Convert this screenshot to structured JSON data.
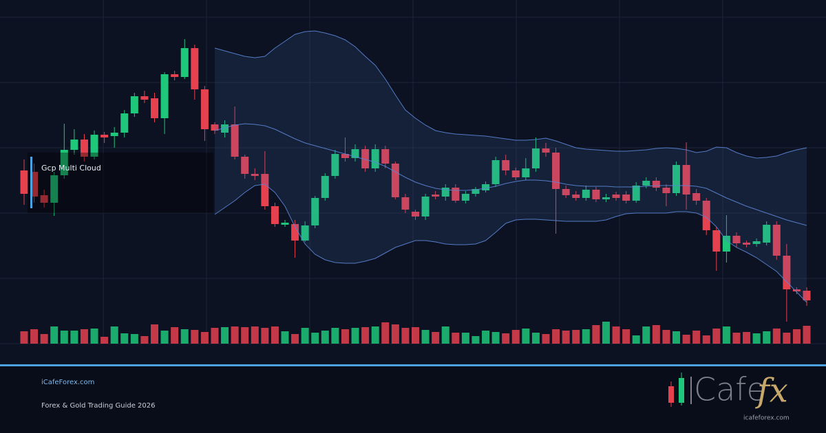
{
  "chart_data": {
    "type": "candlestick",
    "annotation": "Gcp Multi Cloud",
    "open": [
      252,
      250,
      216,
      205,
      245,
      282,
      297,
      272,
      304,
      302,
      307,
      335,
      360,
      357,
      328,
      392,
      388,
      430,
      370,
      319,
      307,
      319,
      272,
      247,
      247,
      200,
      173,
      174,
      150,
      172,
      212,
      244,
      276,
      270,
      283,
      255,
      283,
      262,
      213,
      192,
      185,
      217,
      214,
      227,
      208,
      218,
      223,
      232,
      267,
      252,
      242,
      255,
      284,
      278,
      225,
      217,
      212,
      224,
      210,
      217,
      217,
      208,
      230,
      237,
      227,
      219,
      260,
      219,
      208,
      165,
      134,
      157,
      147,
      145,
      147,
      173,
      128,
      79,
      77
    ],
    "close": [
      218,
      214,
      205,
      245,
      282,
      297,
      272,
      304,
      300,
      307,
      335,
      360,
      355,
      328,
      392,
      388,
      430,
      370,
      312,
      310,
      319,
      272,
      247,
      244,
      200,
      174,
      176,
      150,
      172,
      212,
      244,
      276,
      270,
      283,
      255,
      283,
      262,
      213,
      195,
      185,
      214,
      214,
      227,
      208,
      218,
      225,
      232,
      267,
      252,
      242,
      255,
      284,
      278,
      225,
      216,
      212,
      224,
      210,
      213,
      212,
      208,
      230,
      237,
      227,
      219,
      260,
      217,
      208,
      165,
      134,
      157,
      146,
      144,
      149,
      173,
      128,
      79,
      76,
      63
    ],
    "high": [
      268,
      262,
      224,
      250,
      320,
      312,
      305,
      310,
      308,
      315,
      340,
      365,
      368,
      365,
      395,
      397,
      443,
      435,
      375,
      322,
      325,
      345,
      275,
      255,
      280,
      205,
      180,
      180,
      178,
      215,
      248,
      282,
      300,
      290,
      288,
      290,
      288,
      265,
      218,
      195,
      218,
      222,
      232,
      232,
      222,
      228,
      236,
      272,
      275,
      256,
      270,
      300,
      292,
      285,
      230,
      222,
      230,
      228,
      218,
      221,
      222,
      235,
      242,
      242,
      232,
      265,
      293,
      225,
      212,
      170,
      187,
      162,
      150,
      153,
      178,
      178,
      145,
      82,
      82
    ],
    "low": [
      202,
      205,
      198,
      186,
      240,
      275,
      265,
      268,
      292,
      285,
      300,
      330,
      350,
      322,
      305,
      383,
      385,
      355,
      295,
      305,
      300,
      268,
      240,
      238,
      195,
      170,
      170,
      125,
      148,
      168,
      208,
      240,
      265,
      265,
      250,
      250,
      255,
      210,
      190,
      180,
      180,
      210,
      208,
      205,
      204,
      214,
      220,
      228,
      245,
      238,
      238,
      250,
      272,
      160,
      212,
      208,
      208,
      206,
      206,
      208,
      204,
      205,
      226,
      222,
      200,
      215,
      195,
      202,
      158,
      106,
      118,
      140,
      140,
      141,
      143,
      122,
      32,
      72,
      55
    ],
    "volume": [
      18,
      21,
      14,
      25,
      19,
      19,
      21,
      22,
      10,
      25,
      15,
      14,
      11,
      28,
      19,
      24,
      21,
      20,
      17,
      23,
      24,
      25,
      24,
      25,
      23,
      25,
      18,
      14,
      23,
      16,
      19,
      23,
      21,
      23,
      24,
      25,
      31,
      28,
      23,
      24,
      20,
      17,
      25,
      16,
      16,
      11,
      19,
      17,
      15,
      20,
      22,
      16,
      14,
      21,
      19,
      20,
      21,
      27,
      32,
      25,
      21,
      12,
      25,
      27,
      20,
      18,
      13,
      19,
      12,
      22,
      25,
      16,
      17,
      15,
      18,
      22,
      16,
      21,
      26
    ],
    "colors": {
      "up": "#1fc77a",
      "down": "#e5414f"
    },
    "bands": {
      "color": "#5b86d6",
      "upper": [
        null,
        null,
        null,
        null,
        null,
        null,
        null,
        null,
        null,
        null,
        null,
        null,
        null,
        null,
        null,
        null,
        null,
        null,
        null,
        430,
        426,
        422,
        418,
        416,
        418,
        430,
        440,
        450,
        454,
        455,
        452,
        448,
        442,
        432,
        418,
        405,
        385,
        362,
        340,
        328,
        318,
        310,
        307,
        305,
        304,
        303,
        302,
        300,
        298,
        296,
        296,
        297,
        299,
        295,
        290,
        285,
        283,
        282,
        281,
        280,
        280,
        281,
        282,
        284,
        285,
        284,
        282,
        278,
        280,
        286,
        285,
        278,
        273,
        270,
        271,
        273,
        278,
        282,
        285
      ],
      "middle": [
        null,
        null,
        null,
        null,
        null,
        null,
        null,
        null,
        null,
        null,
        null,
        null,
        null,
        null,
        null,
        null,
        null,
        null,
        null,
        310,
        314,
        318,
        320,
        319,
        317,
        312,
        305,
        298,
        292,
        288,
        284,
        280,
        276,
        272,
        268,
        264,
        258,
        250,
        242,
        235,
        230,
        226,
        224,
        223,
        223,
        224,
        226,
        229,
        233,
        236,
        238,
        238,
        237,
        235,
        232,
        230,
        229,
        229,
        229,
        228,
        228,
        228,
        229,
        230,
        230,
        230,
        230,
        229,
        226,
        219,
        212,
        206,
        200,
        195,
        190,
        185,
        180,
        176,
        172
      ],
      "lower": [
        null,
        null,
        null,
        null,
        null,
        null,
        null,
        null,
        null,
        null,
        null,
        null,
        null,
        null,
        null,
        null,
        null,
        null,
        null,
        188,
        198,
        208,
        220,
        230,
        232,
        220,
        200,
        170,
        145,
        130,
        122,
        118,
        117,
        117,
        120,
        124,
        132,
        140,
        145,
        150,
        150,
        148,
        145,
        144,
        144,
        145,
        150,
        162,
        175,
        180,
        181,
        181,
        180,
        179,
        178,
        178,
        178,
        178,
        180,
        185,
        189,
        190,
        190,
        190,
        190,
        192,
        192,
        190,
        184,
        170,
        150,
        140,
        133,
        125,
        115,
        105,
        90,
        75,
        60
      ]
    },
    "ylim": [
      0,
      475
    ],
    "yticks": [
      0,
      95,
      190,
      285,
      380,
      475
    ],
    "grid": true,
    "vlim": [
      0,
      40
    ]
  },
  "footer": {
    "site": "iCafeForex.com",
    "tagline": "Forex & Gold Trading Guide 2026"
  },
  "logo": {
    "word": "Cafe",
    "accent": "fx",
    "url": "icafeforex.com"
  }
}
